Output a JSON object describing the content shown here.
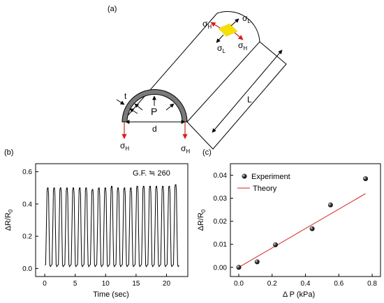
{
  "panels": {
    "a": "(a)",
    "b": "(b)",
    "c": "(c)"
  },
  "diagram": {
    "t_label": "t",
    "p_label": "P",
    "d_label": "d",
    "l_label": "L",
    "sigma": "σ",
    "sub_h": "H",
    "sub_l": "L",
    "stress_color": "#d42020",
    "patch_color": "#f5e000"
  },
  "chart_data": [
    {
      "type": "line",
      "panel": "(b)",
      "xlabel": "Time (sec)",
      "ylabel_main": "ΔR/R",
      "ylabel_sub": "0",
      "xlim": [
        -1.5,
        23.5
      ],
      "ylim": [
        -0.05,
        0.65
      ],
      "xticks": [
        "0",
        "5",
        "10",
        "15",
        "20"
      ],
      "xtick_values": [
        0,
        5,
        10,
        15,
        20
      ],
      "yticks": [
        "0.0",
        "0.2",
        "0.4",
        "0.6"
      ],
      "ytick_values": [
        0.0,
        0.2,
        0.4,
        0.6
      ],
      "annotation": "G.F. ≒    260",
      "baseline": 0.02,
      "peaks": {
        "x": [
          0.5,
          1.55,
          2.6,
          3.65,
          4.7,
          5.75,
          6.8,
          7.85,
          8.9,
          9.95,
          11.0,
          12.05,
          13.1,
          14.15,
          15.2,
          16.25,
          17.3,
          18.35,
          19.4,
          20.45,
          21.5
        ],
        "values": [
          0.5,
          0.5,
          0.5,
          0.5,
          0.5,
          0.5,
          0.5,
          0.49,
          0.5,
          0.5,
          0.51,
          0.5,
          0.5,
          0.5,
          0.51,
          0.51,
          0.51,
          0.51,
          0.51,
          0.51,
          0.52
        ]
      }
    },
    {
      "type": "scatter",
      "panel": "(c)",
      "xlabel": "Δ P (kPa)",
      "ylabel_main": "ΔR/R",
      "ylabel_sub": "0",
      "xlim": [
        -0.05,
        0.85
      ],
      "ylim": [
        -0.004,
        0.045
      ],
      "xticks": [
        "0.0",
        "0.2",
        "0.4",
        "0.6",
        "0.8"
      ],
      "xtick_values": [
        0.0,
        0.2,
        0.4,
        0.6,
        0.8
      ],
      "yticks": [
        "0.00",
        "0.01",
        "0.02",
        "0.03",
        "0.04"
      ],
      "ytick_values": [
        0.0,
        0.01,
        0.02,
        0.03,
        0.04
      ],
      "series": [
        {
          "name": "Experiment",
          "x": [
            0.0,
            0.11,
            0.22,
            0.44,
            0.55,
            0.76
          ],
          "y": [
            0.0,
            0.0024,
            0.0098,
            0.0168,
            0.0271,
            0.0385
          ]
        },
        {
          "name": "Theory",
          "x": [
            0.0,
            0.76
          ],
          "y": [
            0.0,
            0.032
          ],
          "color": "#d42020"
        }
      ],
      "legend": "top-left"
    }
  ]
}
